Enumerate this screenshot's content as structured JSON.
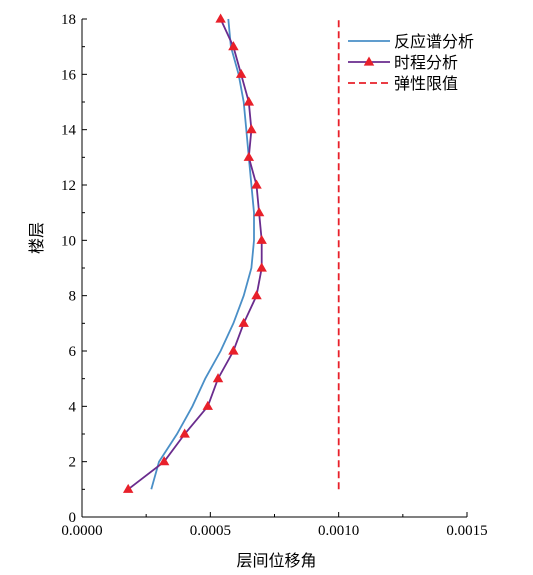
{
  "chart_data": {
    "type": "line",
    "xlabel": "层间位移角",
    "ylabel": "楼层",
    "xlim": [
      0,
      0.0015
    ],
    "ylim": [
      0,
      18
    ],
    "x_ticks": [
      0,
      0.0005,
      0.001,
      0.0015
    ],
    "x_tick_labels": [
      "0.0000",
      "0.0005",
      "0.0010",
      "0.0015"
    ],
    "y_ticks": [
      0,
      2,
      4,
      6,
      8,
      10,
      12,
      14,
      16,
      18
    ],
    "y_tick_labels": [
      "0",
      "2",
      "4",
      "6",
      "8",
      "10",
      "12",
      "14",
      "16",
      "18"
    ],
    "legend_position": "top-right",
    "grid": false,
    "series": [
      {
        "name": "反应谱分析",
        "color": "#4a8fc7",
        "style": "solid",
        "x": [
          0.00027,
          0.0003,
          0.00037,
          0.00043,
          0.00048,
          0.00054,
          0.00059,
          0.00063,
          0.00066,
          0.00067,
          0.00067,
          0.00066,
          0.00065,
          0.00064,
          0.00063,
          0.00061,
          0.00058,
          0.00057
        ],
        "y": [
          1,
          2,
          3,
          4,
          5,
          6,
          7,
          8,
          9,
          10,
          11,
          12,
          13,
          14,
          15,
          16,
          17,
          18
        ]
      },
      {
        "name": "时程分析",
        "color": "#6a2c8e",
        "marker": "triangle",
        "marker_color": "#e8202a",
        "style": "solid",
        "x": [
          0.00018,
          0.00032,
          0.0004,
          0.00049,
          0.00053,
          0.00059,
          0.00063,
          0.00068,
          0.0007,
          0.0007,
          0.00069,
          0.00068,
          0.00065,
          0.00066,
          0.00065,
          0.00062,
          0.00059,
          0.00054
        ],
        "y": [
          1,
          2,
          3,
          4,
          5,
          6,
          7,
          8,
          9,
          10,
          11,
          12,
          13,
          14,
          15,
          16,
          17,
          18
        ]
      },
      {
        "name": "弹性限值",
        "color": "#e8202a",
        "style": "dashed",
        "x": [
          0.001,
          0.001
        ],
        "y": [
          1,
          18
        ]
      }
    ]
  }
}
